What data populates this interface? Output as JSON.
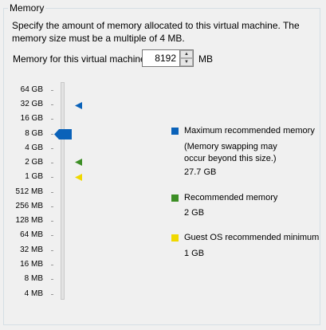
{
  "group": {
    "title": "Memory",
    "description": "Specify the amount of memory allocated to this virtual machine. The memory size must be a multiple of 4 MB."
  },
  "memory_field": {
    "label": "Memory for this virtual machine:",
    "value": "8192",
    "unit": "MB"
  },
  "scale": {
    "labels": [
      "64 GB",
      "32 GB",
      "16 GB",
      "8 GB",
      "4 GB",
      "2 GB",
      "1 GB",
      "512 MB",
      "256 MB",
      "128 MB",
      "64 MB",
      "32 MB",
      "16 MB",
      "8 MB",
      "4 MB"
    ],
    "current": "8 GB"
  },
  "legend": {
    "maximum": {
      "label": "Maximum recommended memory",
      "note": "(Memory swapping may occur beyond this size.)",
      "value": "27.7 GB",
      "color": "#0a62b9"
    },
    "recommended": {
      "label": "Recommended memory",
      "value": "2 GB",
      "color": "#3c8e25"
    },
    "guest_min": {
      "label": "Guest OS recommended minimum",
      "value": "1 GB",
      "color": "#f0d800"
    }
  },
  "colors": {
    "accent": "#0a62b9",
    "background": "#f0f0f0"
  }
}
